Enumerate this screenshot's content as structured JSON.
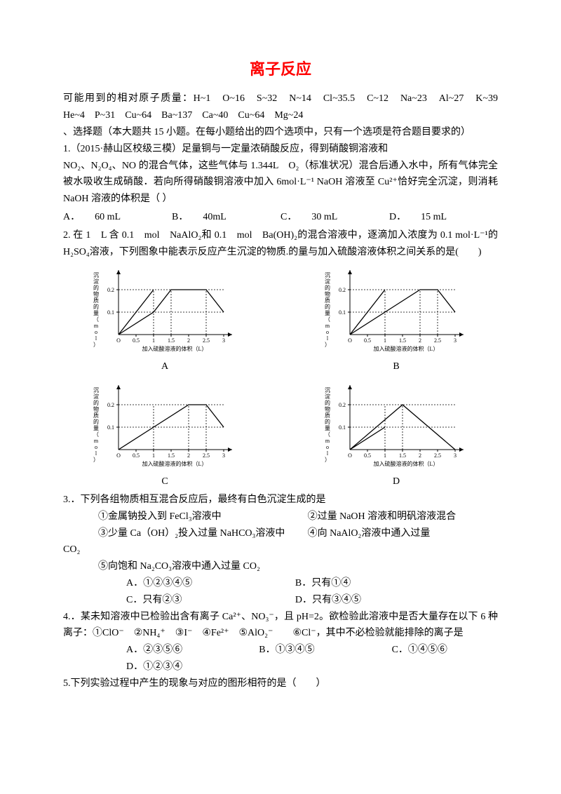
{
  "title": "离子反应",
  "atomic_masses": "可能用到的相对原子质量：H~1　O~16　S~32　N~14　Cl~35.5　C~12　Na~23　Al~27　K~39　He~4　P~31　Cu~64　Ba~137　Ca~40　Cu~64　Mg~24",
  "section_heading": "、选择题（本大题共 15 小题。在每小题给出的四个选项中，只有一个选项是符合题目要求的）",
  "q1_l1": "1.（2015·赫山区校级三模）足量铜与一定量浓硝酸反应，得到硝酸铜溶液和",
  "q1_l2": "NO₂、N₂O₄、NO 的混合气体，这些气体与 1.344L　O₂（标准状况）混合后通入水中，所有气体完全被水吸收生成硝酸．若向所得硝酸铜溶液中加入 6mol·L⁻¹ NaOH 溶液至 Cu²⁺恰好完全沉淀，则消耗 NaOH 溶液的体积是（ ）",
  "q1_opts": {
    "A": "A．",
    "Av": "60 mL",
    "B": "B．",
    "Bv": "40mL",
    "C": "C．",
    "Cv": "30 mL",
    "D": "D．",
    "Dv": "15 mL"
  },
  "q2_l1": "2. 在 1　L 含 0.1　mol　NaAlO₂和 0.1　mol　Ba(OH)₂的混合溶液中，逐滴加入浓度为 0.1 mol·L⁻¹的 H₂SO₄溶液，下列图象中能表示反应产生沉淀的物质.的量与加入硫酸溶液体积之间关系的是(　　)",
  "chart": {
    "type": "multi-line",
    "x_label": "加入硫酸溶液的体积（L）",
    "y_label": "沉淀的物质的量（mol）",
    "x_ticks": [
      "0",
      "0.5",
      "1",
      "1.5",
      "2",
      "2.5",
      "3"
    ],
    "y_ticks": [
      "0.1",
      "0.2"
    ],
    "xlim": [
      0,
      3
    ],
    "ylim": [
      0,
      0.25
    ],
    "bg": "#ffffff",
    "axis_color": "#000000",
    "dash_color": "#000000",
    "A": {
      "label": "A",
      "poly1": [
        [
          0,
          0
        ],
        [
          1,
          0.1
        ],
        [
          1.5,
          0.2
        ],
        [
          2.5,
          0.2
        ],
        [
          3,
          0.1
        ]
      ],
      "poly2": [
        [
          0,
          0
        ],
        [
          1,
          0.2
        ]
      ],
      "dash_x": [
        1,
        1.5,
        2.5
      ],
      "dash_y": [
        0.1,
        0.2
      ]
    },
    "B": {
      "label": "B",
      "poly1": [
        [
          0,
          0
        ],
        [
          1,
          0.1
        ],
        [
          2,
          0.2
        ],
        [
          2.5,
          0.2
        ],
        [
          3,
          0.1
        ]
      ],
      "poly2": [
        [
          0,
          0
        ],
        [
          1,
          0.2
        ]
      ],
      "dash_x": [
        1,
        2,
        2.5
      ],
      "dash_y": [
        0.1,
        0.2
      ]
    },
    "C": {
      "label": "C",
      "poly1": [
        [
          0,
          0
        ],
        [
          1,
          0.1
        ],
        [
          2,
          0.2
        ],
        [
          2.5,
          0.2
        ],
        [
          3,
          0.1
        ]
      ],
      "dash_x": [
        1,
        2,
        2.5
      ],
      "dash_y": [
        0.1,
        0.2
      ]
    },
    "D": {
      "label": "D",
      "poly1": [
        [
          0,
          0
        ],
        [
          1.5,
          0.2
        ],
        [
          3,
          0
        ]
      ],
      "poly2": [
        [
          0,
          0
        ],
        [
          1,
          0.1
        ]
      ],
      "dash_x": [
        1,
        1.5
      ],
      "dash_y": [
        0.1,
        0.2
      ]
    }
  },
  "q3_l1": "3.．下列各组物质相互混合反应后，最终有白色沉淀生成的是",
  "q3_c1a": "①金属钠投入到 FeCl₃溶液中",
  "q3_c1b": "②过量 NaOH 溶液和明矾溶液混合",
  "q3_c2a": "③少量 Ca（OH）₂投入过量 NaHCO₃溶液中",
  "q3_c2b": "④向 NaAlO₂溶液中通入过量",
  "q3_co2": "CO₂",
  "q3_c3": "⑤向饱和 Na₂CO₃溶液中通入过量 CO₂",
  "q3_optsA": "A．①②③④⑤",
  "q3_optsB": "B．只有①④",
  "q3_optsC": "C．只有②③",
  "q3_optsD": "D．只有③④⑤",
  "q4_l1": "4.．某未知溶液中已检验出含有离子 Ca²⁺、NO₃⁻，且 pH=2。欲检验此溶液中是否大量存在以下 6 种离子：①ClO⁻　②NH₄⁺　③I⁻　④Fe²⁺　⑤AlO₂⁻　　⑥Cl⁻，其中不必检验就能排除的离子是",
  "q4_optsA": "A．②③⑤⑥",
  "q4_optsB": "B．①③④⑤",
  "q4_optsC": "C．①④⑤⑥",
  "q4_optsD": "D．①②③④",
  "q5_l1": "5.下列实验过程中产生的现象与对应的图形相符的是（　　）"
}
